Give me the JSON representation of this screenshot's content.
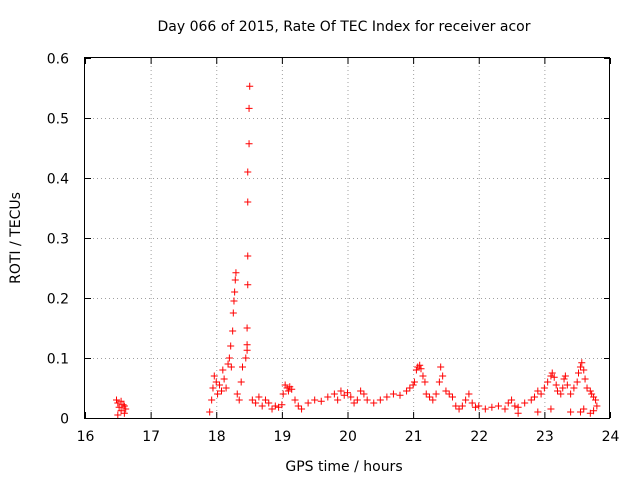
{
  "chart_data": {
    "type": "scatter",
    "title": "Day 066 of 2015, Rate Of TEC Index for receiver acor",
    "xlabel": "GPS time / hours",
    "ylabel": "ROTI / TECUs",
    "xlim": [
      16,
      24
    ],
    "ylim": [
      0,
      0.6
    ],
    "xticks": [
      16,
      17,
      18,
      19,
      20,
      21,
      22,
      23,
      24
    ],
    "yticks": [
      0,
      0.1,
      0.2,
      0.3,
      0.4,
      0.5,
      0.6
    ],
    "xtick_labels": [
      "16",
      "17",
      "18",
      "19",
      "20",
      "21",
      "22",
      "23",
      "24"
    ],
    "ytick_labels": [
      "0",
      "0.1",
      "0.2",
      "0.3",
      "0.4",
      "0.5",
      "0.6"
    ],
    "grid": true,
    "marker": "+",
    "color": "#ff0000",
    "series": [
      {
        "name": "ROTI",
        "points": [
          [
            16.48,
            0.03
          ],
          [
            16.5,
            0.025
          ],
          [
            16.52,
            0.018
          ],
          [
            16.55,
            0.012
          ],
          [
            16.58,
            0.022
          ],
          [
            16.6,
            0.008
          ],
          [
            16.62,
            0.015
          ],
          [
            16.5,
            0.005
          ],
          [
            16.55,
            0.028
          ],
          [
            16.6,
            0.02
          ],
          [
            17.9,
            0.01
          ],
          [
            17.93,
            0.03
          ],
          [
            17.95,
            0.05
          ],
          [
            17.97,
            0.07
          ],
          [
            18.0,
            0.06
          ],
          [
            18.02,
            0.04
          ],
          [
            18.05,
            0.055
          ],
          [
            18.08,
            0.045
          ],
          [
            18.1,
            0.08
          ],
          [
            18.12,
            0.065
          ],
          [
            18.15,
            0.05
          ],
          [
            18.18,
            0.09
          ],
          [
            18.2,
            0.1
          ],
          [
            18.22,
            0.12
          ],
          [
            18.25,
            0.145
          ],
          [
            18.26,
            0.175
          ],
          [
            18.27,
            0.195
          ],
          [
            18.28,
            0.21
          ],
          [
            18.29,
            0.23
          ],
          [
            18.3,
            0.242
          ],
          [
            18.23,
            0.085
          ],
          [
            18.32,
            0.04
          ],
          [
            18.35,
            0.03
          ],
          [
            18.38,
            0.06
          ],
          [
            18.4,
            0.085
          ],
          [
            18.45,
            0.1
          ],
          [
            18.47,
            0.113
          ],
          [
            18.47,
            0.122
          ],
          [
            18.47,
            0.15
          ],
          [
            18.48,
            0.222
          ],
          [
            18.48,
            0.27
          ],
          [
            18.48,
            0.36
          ],
          [
            18.48,
            0.41
          ],
          [
            18.5,
            0.457
          ],
          [
            18.5,
            0.516
          ],
          [
            18.51,
            0.553
          ],
          [
            18.55,
            0.03
          ],
          [
            18.6,
            0.025
          ],
          [
            18.65,
            0.035
          ],
          [
            18.7,
            0.02
          ],
          [
            18.75,
            0.03
          ],
          [
            18.8,
            0.025
          ],
          [
            18.85,
            0.015
          ],
          [
            18.9,
            0.02
          ],
          [
            18.95,
            0.018
          ],
          [
            19.0,
            0.022
          ],
          [
            19.02,
            0.04
          ],
          [
            19.05,
            0.055
          ],
          [
            19.08,
            0.05
          ],
          [
            19.1,
            0.045
          ],
          [
            19.12,
            0.052
          ],
          [
            19.15,
            0.048
          ],
          [
            19.2,
            0.03
          ],
          [
            19.25,
            0.02
          ],
          [
            19.3,
            0.015
          ],
          [
            19.4,
            0.025
          ],
          [
            19.5,
            0.03
          ],
          [
            19.6,
            0.028
          ],
          [
            19.7,
            0.035
          ],
          [
            19.8,
            0.04
          ],
          [
            19.85,
            0.03
          ],
          [
            19.9,
            0.045
          ],
          [
            19.95,
            0.038
          ],
          [
            20.0,
            0.042
          ],
          [
            20.05,
            0.035
          ],
          [
            20.1,
            0.025
          ],
          [
            20.15,
            0.03
          ],
          [
            20.2,
            0.045
          ],
          [
            20.25,
            0.04
          ],
          [
            20.3,
            0.03
          ],
          [
            20.4,
            0.025
          ],
          [
            20.5,
            0.03
          ],
          [
            20.6,
            0.035
          ],
          [
            20.7,
            0.04
          ],
          [
            20.8,
            0.038
          ],
          [
            20.9,
            0.045
          ],
          [
            20.95,
            0.05
          ],
          [
            21.0,
            0.055
          ],
          [
            21.02,
            0.06
          ],
          [
            21.05,
            0.08
          ],
          [
            21.07,
            0.085
          ],
          [
            21.1,
            0.088
          ],
          [
            21.12,
            0.082
          ],
          [
            21.15,
            0.07
          ],
          [
            21.18,
            0.06
          ],
          [
            21.2,
            0.04
          ],
          [
            21.25,
            0.035
          ],
          [
            21.3,
            0.03
          ],
          [
            21.35,
            0.04
          ],
          [
            21.4,
            0.06
          ],
          [
            21.42,
            0.085
          ],
          [
            21.45,
            0.07
          ],
          [
            21.5,
            0.045
          ],
          [
            21.55,
            0.04
          ],
          [
            21.6,
            0.035
          ],
          [
            21.65,
            0.02
          ],
          [
            21.7,
            0.015
          ],
          [
            21.75,
            0.02
          ],
          [
            21.8,
            0.03
          ],
          [
            21.85,
            0.04
          ],
          [
            21.9,
            0.025
          ],
          [
            21.95,
            0.018
          ],
          [
            22.0,
            0.02
          ],
          [
            22.1,
            0.015
          ],
          [
            22.2,
            0.018
          ],
          [
            22.3,
            0.02
          ],
          [
            22.4,
            0.015
          ],
          [
            22.45,
            0.025
          ],
          [
            22.5,
            0.03
          ],
          [
            22.55,
            0.02
          ],
          [
            22.6,
            0.018
          ],
          [
            22.7,
            0.025
          ],
          [
            22.8,
            0.03
          ],
          [
            22.85,
            0.035
          ],
          [
            22.9,
            0.045
          ],
          [
            22.95,
            0.04
          ],
          [
            23.0,
            0.05
          ],
          [
            23.05,
            0.06
          ],
          [
            23.1,
            0.07
          ],
          [
            23.12,
            0.075
          ],
          [
            23.15,
            0.068
          ],
          [
            23.18,
            0.055
          ],
          [
            23.2,
            0.045
          ],
          [
            23.25,
            0.04
          ],
          [
            23.28,
            0.05
          ],
          [
            23.3,
            0.065
          ],
          [
            23.32,
            0.07
          ],
          [
            23.35,
            0.055
          ],
          [
            23.4,
            0.04
          ],
          [
            23.45,
            0.05
          ],
          [
            23.5,
            0.06
          ],
          [
            23.52,
            0.075
          ],
          [
            23.55,
            0.085
          ],
          [
            23.57,
            0.092
          ],
          [
            23.6,
            0.08
          ],
          [
            23.62,
            0.065
          ],
          [
            23.65,
            0.05
          ],
          [
            23.7,
            0.045
          ],
          [
            23.72,
            0.04
          ],
          [
            23.75,
            0.035
          ],
          [
            23.78,
            0.03
          ],
          [
            23.8,
            0.02
          ],
          [
            23.55,
            0.01
          ],
          [
            23.6,
            0.015
          ],
          [
            23.7,
            0.008
          ],
          [
            23.75,
            0.012
          ],
          [
            23.4,
            0.01
          ],
          [
            23.1,
            0.015
          ],
          [
            22.9,
            0.01
          ],
          [
            22.6,
            0.008
          ]
        ]
      }
    ]
  }
}
